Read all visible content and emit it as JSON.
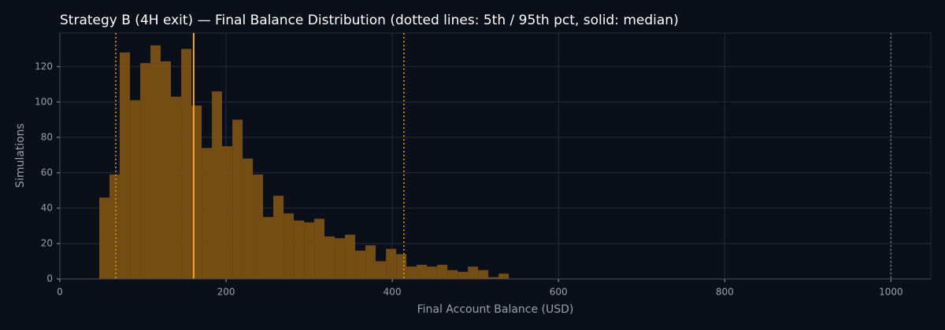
{
  "chart_data": {
    "type": "histogram",
    "title": "Strategy B (4H exit) — Final Balance Distribution (dotted lines: 5th / 95th pct, solid: median)",
    "xlabel": "Final Account Balance (USD)",
    "ylabel": "Simulations",
    "bins": [
      47.4,
      59.7,
      72.0,
      84.4,
      96.7,
      109.0,
      121.3,
      133.6,
      146.0,
      158.3,
      170.6,
      182.9,
      195.2,
      207.6,
      219.9,
      232.2,
      244.5,
      256.8,
      269.2,
      281.5,
      293.8,
      306.1,
      318.4,
      330.8,
      343.1,
      355.4,
      367.7,
      380.0,
      392.4,
      404.7,
      417.0,
      429.3,
      441.6,
      454.0,
      466.3,
      478.6,
      490.9,
      503.2,
      515.6,
      527.9,
      540.2
    ],
    "values": [
      46,
      59,
      128,
      101,
      122,
      132,
      123,
      103,
      130,
      98,
      74,
      106,
      75,
      90,
      68,
      59,
      35,
      47,
      37,
      33,
      32,
      34,
      24,
      23,
      25,
      16,
      19,
      10,
      17,
      14,
      7,
      8,
      7,
      8,
      5,
      4,
      7,
      5,
      1,
      3
    ],
    "color": "#7a5115",
    "vlines": [
      {
        "value": 67.3,
        "style": "dotted",
        "color": "#d9901f"
      },
      {
        "value": 161,
        "style": "solid",
        "color": "#f5a623"
      },
      {
        "value": 414,
        "style": "dotted",
        "color": "#d9901f"
      },
      {
        "value": 1000,
        "style": "dotted",
        "color": "#6b7280"
      }
    ],
    "xlim": [
      0,
      1048
    ],
    "ylim": [
      0,
      139
    ],
    "xticks": [
      0,
      200,
      400,
      600,
      800,
      1000
    ],
    "yticks": [
      0,
      20,
      40,
      60,
      80,
      100,
      120
    ],
    "grid": true
  }
}
